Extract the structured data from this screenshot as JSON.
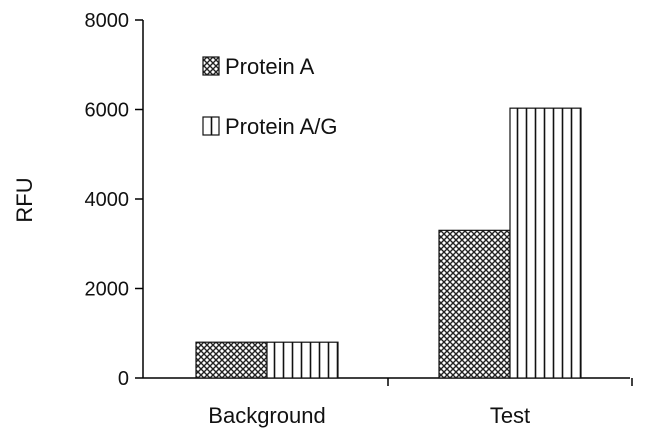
{
  "chart_data": {
    "type": "bar",
    "title": "",
    "xlabel": "",
    "ylabel": "RFU",
    "categories": [
      "Background",
      "Test"
    ],
    "series": [
      {
        "name": "Protein A",
        "values": [
          800,
          3300
        ],
        "pattern": "crosshatch"
      },
      {
        "name": "Protein A/G",
        "values": [
          800,
          6030
        ],
        "pattern": "vertical-stripes"
      }
    ],
    "ylim": [
      0,
      8000
    ],
    "yticks": [
      0,
      2000,
      4000,
      6000,
      8000
    ],
    "grid": false,
    "legend_position": "top-left"
  }
}
